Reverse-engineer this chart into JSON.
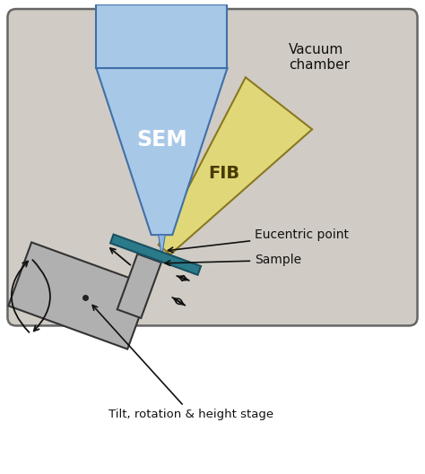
{
  "background_color": "#ffffff",
  "chamber_bg": "#d0ccc5",
  "chamber_border": "#666666",
  "sem_color_top": "#a8c8e8",
  "sem_color_bot": "#6090c8",
  "sem_border": "#4070a8",
  "fib_color": "#e0d878",
  "fib_border": "#8a7820",
  "sample_color": "#b0b0b0",
  "sample_border": "#333333",
  "teal_color": "#2a7a8a",
  "teal_border": "#1a5060",
  "arrow_color": "#111111",
  "text_color": "#111111",
  "label_vacuum": "Vacuum\nchamber",
  "label_sem": "SEM",
  "label_fib": "FIB",
  "label_eucentric": "Eucentric point",
  "label_sample": "Sample",
  "label_tilt": "Tilt, rotation & height stage",
  "figsize": [
    4.74,
    5.29
  ],
  "dpi": 100
}
